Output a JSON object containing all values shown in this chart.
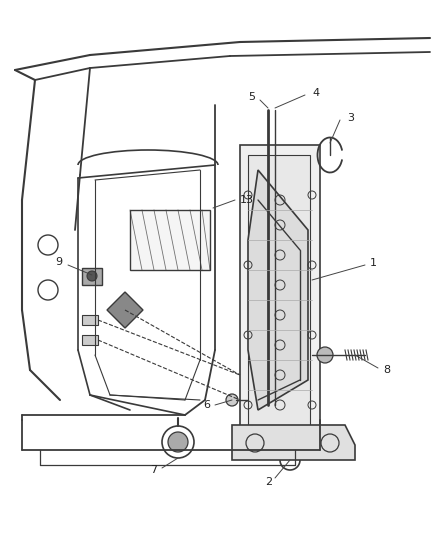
{
  "bg_color": "#ffffff",
  "fig_width": 4.38,
  "fig_height": 5.33,
  "dpi": 100,
  "lc": "#3a3a3a",
  "label_fs": 8,
  "label_color": "#222222"
}
